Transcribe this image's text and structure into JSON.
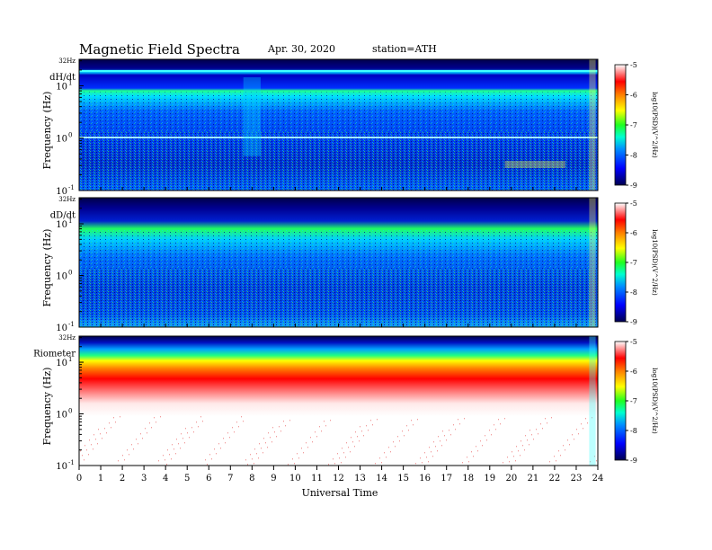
{
  "header": {
    "title": "Magnetic  Field  Spectra",
    "date": "Apr. 30, 2020",
    "station": "station=ATH"
  },
  "chart_data": [
    {
      "type": "heatmap",
      "panel_label": "dH/dt",
      "ylabel": "Frequency  (Hz)",
      "top_label": "32Hz",
      "y_ticks": [
        {
          "base": "10",
          "exp": "1",
          "value": 10
        },
        {
          "base": "10",
          "exp": "0",
          "value": 1
        },
        {
          "base": "10",
          "exp": "-1",
          "value": 0.1
        }
      ],
      "ylim": [
        0.1,
        32
      ],
      "yscale": "log",
      "xlim": [
        0,
        24
      ],
      "colorbar": {
        "label": "log10(PSD)(V^2/Hz)",
        "range": [
          -9,
          -5
        ],
        "ticks": [
          "-5",
          "-6",
          "-7",
          "-8",
          "-9"
        ]
      }
    },
    {
      "type": "heatmap",
      "panel_label": "dD/dt",
      "ylabel": "Frequency  (Hz)",
      "top_label": "32Hz",
      "y_ticks": [
        {
          "base": "10",
          "exp": "1",
          "value": 10
        },
        {
          "base": "10",
          "exp": "0",
          "value": 1
        },
        {
          "base": "10",
          "exp": "-1",
          "value": 0.1
        }
      ],
      "ylim": [
        0.1,
        32
      ],
      "yscale": "log",
      "xlim": [
        0,
        24
      ],
      "colorbar": {
        "label": "log10(PSD)(V^2/Hz)",
        "range": [
          -9,
          -5
        ],
        "ticks": [
          "-5",
          "-6",
          "-7",
          "-8",
          "-9"
        ]
      }
    },
    {
      "type": "heatmap",
      "panel_label": "Riometer",
      "ylabel": "Frequency  (Hz)",
      "top_label": "32Hz",
      "y_ticks": [
        {
          "base": "10",
          "exp": "1",
          "value": 10
        },
        {
          "base": "10",
          "exp": "0",
          "value": 1
        },
        {
          "base": "10",
          "exp": "-1",
          "value": 0.1
        }
      ],
      "ylim": [
        0.1,
        32
      ],
      "yscale": "log",
      "xlim": [
        0,
        24
      ],
      "colorbar": {
        "label": "log10(PSD)(V^2/Hz)",
        "range": [
          -9,
          -5
        ],
        "ticks": [
          "-5",
          "-6",
          "-7",
          "-8",
          "-9"
        ]
      }
    }
  ],
  "x_axis": {
    "label": "Universal  Time",
    "ticks": [
      "0",
      "1",
      "2",
      "3",
      "4",
      "5",
      "6",
      "7",
      "8",
      "9",
      "10",
      "11",
      "12",
      "13",
      "14",
      "15",
      "16",
      "17",
      "18",
      "19",
      "20",
      "21",
      "22",
      "23",
      "24"
    ]
  },
  "colors": {
    "scale": [
      "#000060",
      "#0000ff",
      "#00a0ff",
      "#00ffb0",
      "#30ff30",
      "#ffff00",
      "#ff8000",
      "#ff0000",
      "#ffffff"
    ]
  }
}
